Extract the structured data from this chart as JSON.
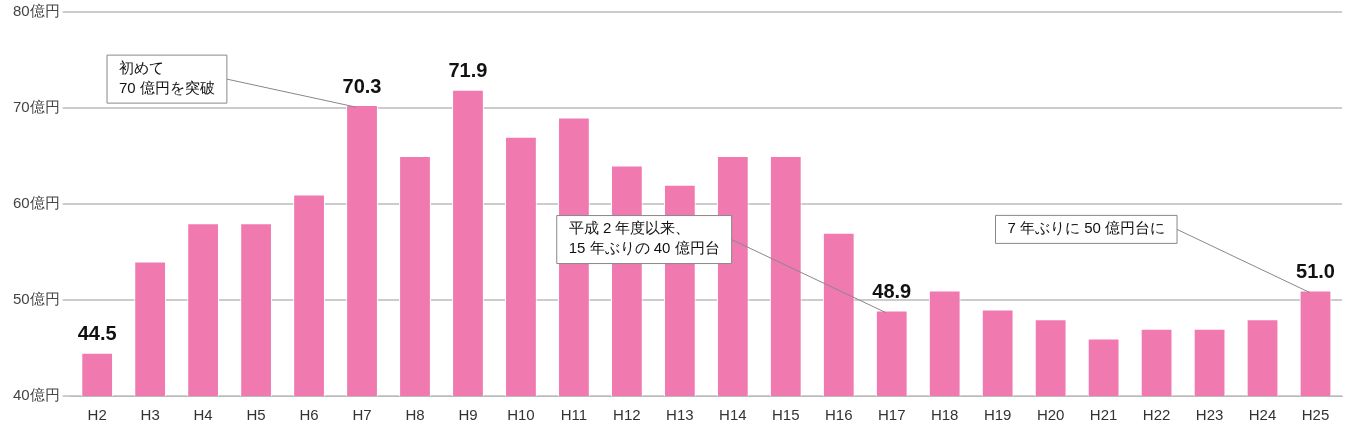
{
  "chart_data": {
    "type": "bar",
    "categories": [
      "H2",
      "H3",
      "H4",
      "H5",
      "H6",
      "H7",
      "H8",
      "H9",
      "H10",
      "H11",
      "H12",
      "H13",
      "H14",
      "H15",
      "H16",
      "H17",
      "H18",
      "H19",
      "H20",
      "H21",
      "H22",
      "H23",
      "H24",
      "H25"
    ],
    "values": [
      44.5,
      54,
      58,
      58,
      61,
      70.3,
      65,
      71.9,
      67,
      69,
      64,
      62,
      65,
      65,
      57,
      48.9,
      51,
      49,
      48,
      46,
      47,
      47,
      48,
      51.0
    ],
    "value_labels": [
      "44.5",
      null,
      null,
      null,
      null,
      "70.3",
      null,
      "71.9",
      null,
      null,
      null,
      null,
      null,
      null,
      null,
      "48.9",
      null,
      null,
      null,
      null,
      null,
      null,
      null,
      "51.0"
    ],
    "color": "#f07ab0",
    "ylim": [
      40,
      80
    ],
    "yticks": [
      {
        "value": 40,
        "label": "40億円"
      },
      {
        "value": 50,
        "label": "50億円"
      },
      {
        "value": 60,
        "label": "60億円"
      },
      {
        "value": 70,
        "label": "70億円"
      },
      {
        "value": 80,
        "label": "80億円"
      }
    ],
    "grid": "y",
    "annotations": [
      {
        "text": "初めて\n70 億円を突破",
        "x": "H7",
        "y": 70.3
      },
      {
        "text": "平成 2 年度以来、\n15 年ぶりの 40 億円台",
        "x": "H17",
        "y": 48.9
      },
      {
        "text": "7 年ぶりに 50 億円台に",
        "x": "H25",
        "y": 51.0
      }
    ]
  }
}
